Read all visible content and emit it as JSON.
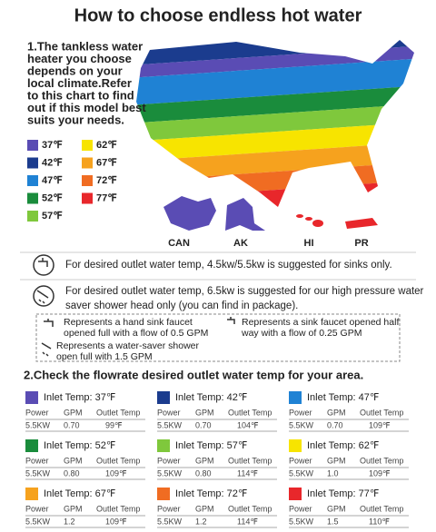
{
  "header": {
    "title": "How to choose endless hot water"
  },
  "section1": {
    "lines": [
      "1.The tankless water",
      "heater you choose",
      "depends on your",
      "local climate.Refer",
      "to this chart to find",
      "out if this model best",
      "suits your needs."
    ]
  },
  "legend": [
    {
      "label": "37℉",
      "color": "#5a4cb4"
    },
    {
      "label": "42℉",
      "color": "#1b3c8e"
    },
    {
      "label": "47℉",
      "color": "#1f82d4"
    },
    {
      "label": "52℉",
      "color": "#1a8c3c"
    },
    {
      "label": "57℉",
      "color": "#7fc83c"
    },
    {
      "label": "62℉",
      "color": "#f7e400"
    },
    {
      "label": "67℉",
      "color": "#f6a21e"
    },
    {
      "label": "72℉",
      "color": "#f06c22"
    },
    {
      "label": "77℉",
      "color": "#e8272b"
    }
  ],
  "regions": [
    "CAN",
    "AK",
    "HI",
    "PR"
  ],
  "notes": {
    "sinks": "For desired outlet water temp, 4.5kw/5.5kw is suggested for sinks only.",
    "shower": [
      "For desired outlet water temp, 6.5kw is suggested for our high pressure water",
      "saver shower head only (you can find in package)."
    ],
    "hand_sink": [
      "Represents a hand sink faucet",
      "opened full with a flow of 0.5 GPM"
    ],
    "half_sink": [
      "Represents a sink faucet opened half",
      "way with a flow of 0.25 GPM"
    ],
    "shower_head": [
      "Represents a water-saver shower",
      "open full with 1.5 GPM"
    ]
  },
  "section2": {
    "title": "2.Check the flowrate desired outlet water temp for your area."
  },
  "card_columns": [
    "Power",
    "GPM",
    "Outlet Temp"
  ],
  "cards": [
    {
      "label": "Inlet Temp: 37℉",
      "row": [
        "5.5KW",
        "0.70",
        "99℉"
      ]
    },
    {
      "label": "Inlet Temp: 42℉",
      "row": [
        "5.5KW",
        "0.70",
        "104℉"
      ]
    },
    {
      "label": "Inlet Temp: 47℉",
      "row": [
        "5.5KW",
        "0.70",
        "109℉"
      ]
    },
    {
      "label": "Inlet Temp: 52℉",
      "row": [
        "5.5KW",
        "0.80",
        "109℉"
      ]
    },
    {
      "label": "Inlet Temp: 57℉",
      "row": [
        "5.5KW",
        "0.80",
        "114℉"
      ]
    },
    {
      "label": "Inlet Temp: 62℉",
      "row": [
        "5.5KW",
        "1.0",
        "109℉"
      ]
    },
    {
      "label": "Inlet Temp: 67℉",
      "row": [
        "5.5KW",
        "1.2",
        "109℉"
      ]
    },
    {
      "label": "Inlet Temp: 72℉",
      "row": [
        "5.5KW",
        "1.2",
        "114℉"
      ]
    },
    {
      "label": "Inlet Temp: 77℉",
      "row": [
        "5.5KW",
        "1.5",
        "110℉"
      ]
    }
  ]
}
